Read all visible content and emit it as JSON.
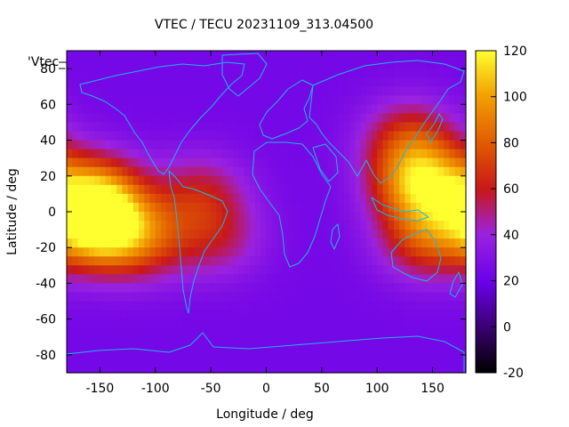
{
  "chart_data": {
    "type": "heatmap",
    "title": "VTEC / TECU 20231109_313.04500",
    "xlabel": "Longitude / deg",
    "ylabel": "Latitude / deg",
    "legend_label": "'Vtec_",
    "xlim": [
      -180,
      180
    ],
    "ylim": [
      -90,
      90
    ],
    "x_ticks": [
      -150,
      -100,
      -50,
      0,
      50,
      100,
      150
    ],
    "y_ticks": [
      -80,
      -60,
      -40,
      -20,
      0,
      20,
      40,
      60,
      80
    ],
    "colorbar": {
      "range": [
        -20,
        120
      ],
      "ticks": [
        -20,
        0,
        20,
        40,
        60,
        80,
        100,
        120
      ],
      "palette": "black-blue-purple-red-orange-yellow"
    },
    "background_tecu": 24,
    "features": [
      {
        "name": "pacific-west-crest",
        "lon": -155,
        "lat": 9,
        "peak_tecu": 95
      },
      {
        "name": "pacific-west-trough",
        "lon": -150,
        "lat": -10,
        "peak_tecu": 100
      },
      {
        "name": "east-pacific-south",
        "lon": -110,
        "lat": -15,
        "peak_tecu": 62
      },
      {
        "name": "south-america-north",
        "lon": -60,
        "lat": 10,
        "peak_tecu": 55
      },
      {
        "name": "atlantic-south",
        "lon": -45,
        "lat": -15,
        "peak_tecu": 50
      },
      {
        "name": "asia-pacific-crest",
        "lon": 140,
        "lat": 15,
        "peak_tecu": 100
      },
      {
        "name": "australia-region",
        "lon": 145,
        "lat": -15,
        "peak_tecu": 70
      },
      {
        "name": "east-asia-north",
        "lon": 130,
        "lat": 40,
        "peak_tecu": 65
      }
    ]
  }
}
